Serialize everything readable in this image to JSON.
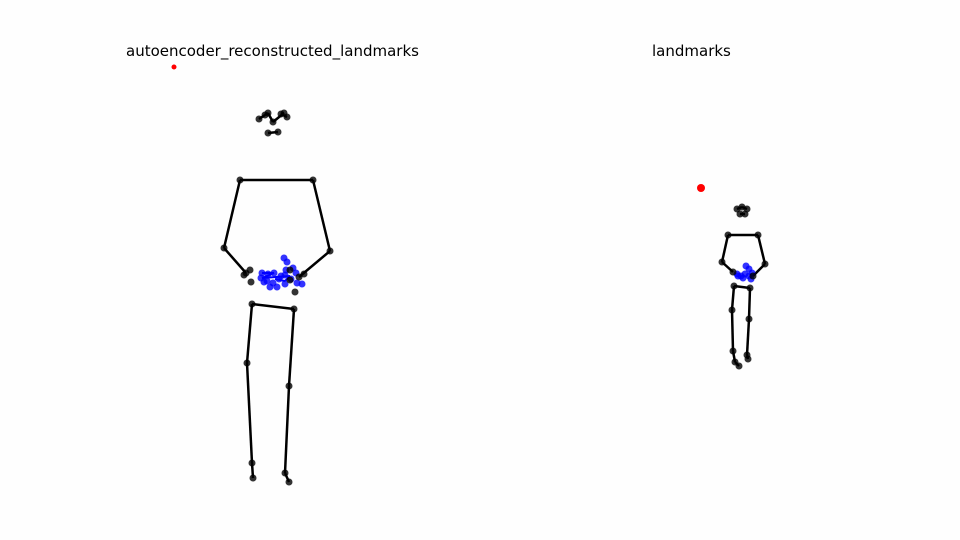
{
  "panels": [
    {
      "title": "autoencoder_reconstructed_landmarks"
    },
    {
      "title": "landmarks"
    }
  ],
  "colors": {
    "pose": "#000000",
    "hands": "#0000ff",
    "marker": "#ff0000"
  }
}
